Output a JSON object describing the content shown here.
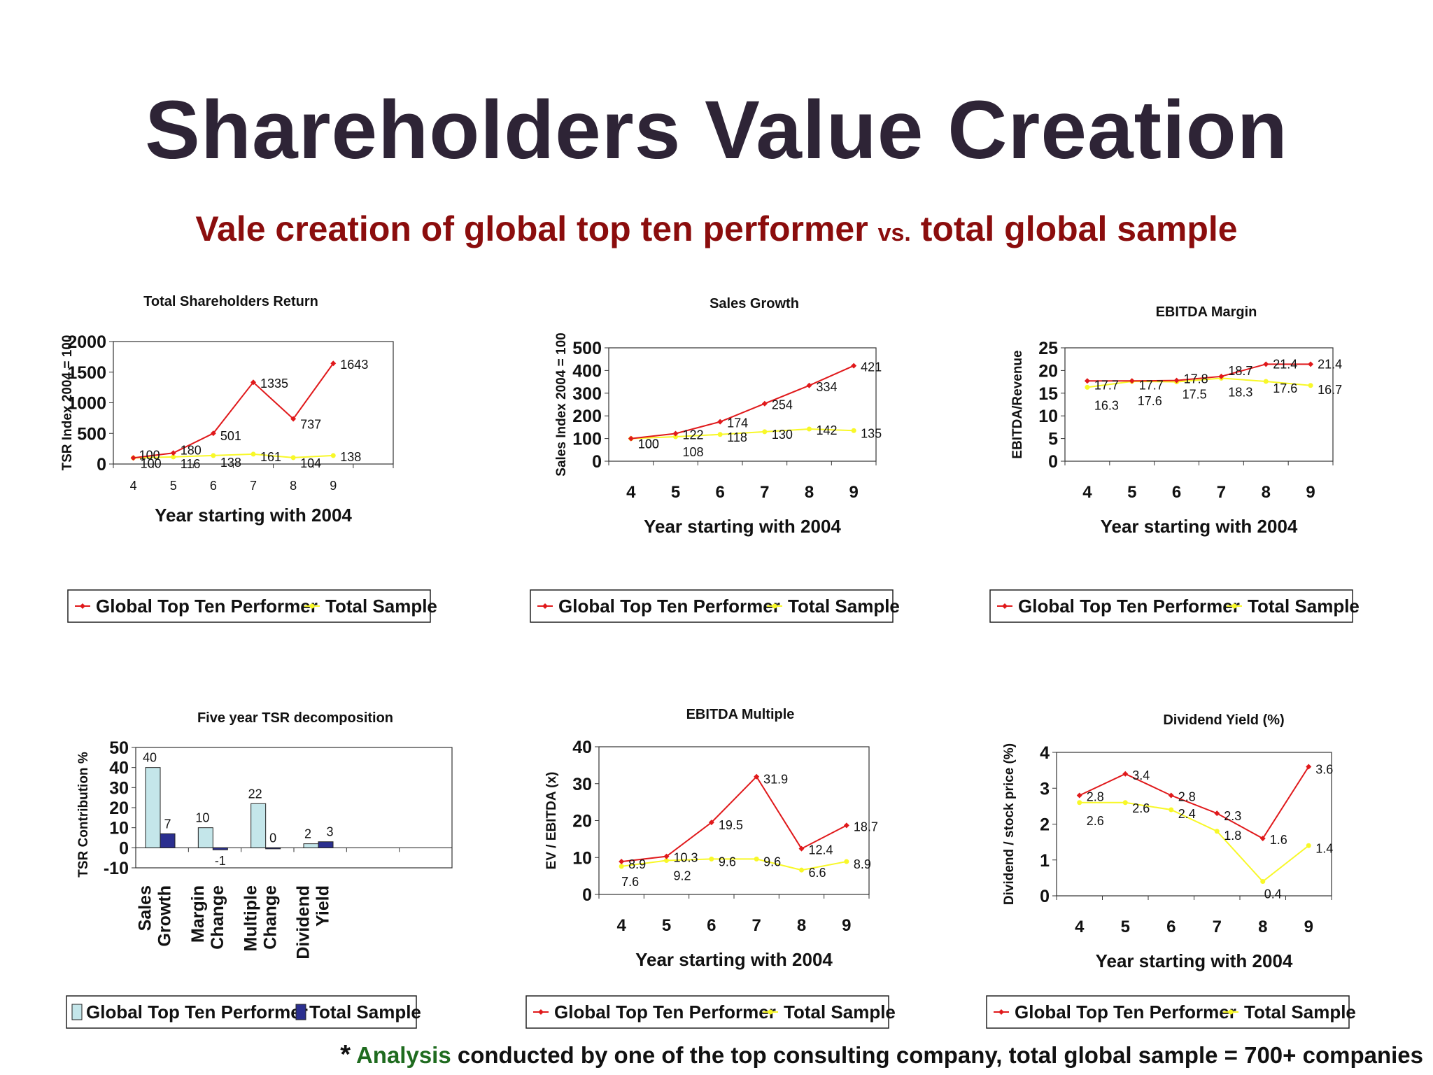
{
  "slide": {
    "title": "Shareholders Value Creation",
    "subtitle_part1": "Vale creation of global top ten performer ",
    "subtitle_vs": "vs.",
    "subtitle_part2": " total global sample",
    "footnote_star": "*",
    "footnote_green": "Analysis",
    "footnote_rest": " conducted by one of the top consulting company, total global sample = 700+ companies"
  },
  "colors": {
    "top_ten_line": "#e0191b",
    "total_sample_line": "#f8f828",
    "bar_top_ten": "#c4e6ea",
    "bar_total_sample": "#2b2f8f",
    "title": "#2e2436",
    "subtitle": "#8b0d0d",
    "footnote_highlight": "#1f6b1f"
  },
  "chart_data": [
    {
      "type": "line",
      "title": "Total Shareholders Return",
      "xlabel": "Year starting with 2004",
      "ylabel": "TSR Index    2004 = 100",
      "x": [
        4,
        5,
        6,
        7,
        8,
        9
      ],
      "ylim": [
        0,
        2000
      ],
      "yticks": [
        0,
        500,
        1000,
        1500,
        2000
      ],
      "series": [
        {
          "name": "Global Top Ten Performer",
          "values": [
            100,
            180,
            501,
            1335,
            737,
            1643
          ]
        },
        {
          "name": "Total Sample",
          "values": [
            100,
            116,
            138,
            161,
            104,
            138
          ]
        }
      ],
      "legend": "bottom"
    },
    {
      "type": "line",
      "title": "Sales Growth",
      "xlabel": "Year starting with 2004",
      "ylabel": "Sales Index    2004 = 100",
      "x": [
        4,
        5,
        6,
        7,
        8,
        9
      ],
      "ylim": [
        0,
        500
      ],
      "yticks": [
        0,
        100,
        200,
        300,
        400,
        500
      ],
      "series": [
        {
          "name": "Global Top Ten Performer",
          "values": [
            100,
            122,
            174,
            254,
            334,
            421
          ]
        },
        {
          "name": "Total Sample",
          "values": [
            100,
            108,
            118,
            130,
            142,
            135
          ]
        }
      ],
      "legend": "bottom"
    },
    {
      "type": "line",
      "title": "EBITDA Margin",
      "xlabel": "Year starting with 2004",
      "ylabel": "EBITDA/Revenue",
      "x": [
        4,
        5,
        6,
        7,
        8,
        9
      ],
      "ylim": [
        0,
        25
      ],
      "yticks": [
        0,
        5,
        10,
        15,
        20,
        25
      ],
      "series": [
        {
          "name": "Global Top Ten Performer",
          "values": [
            17.7,
            17.7,
            17.8,
            18.7,
            21.4,
            21.4
          ]
        },
        {
          "name": "Total Sample",
          "values": [
            16.3,
            17.6,
            17.5,
            18.3,
            17.6,
            16.7
          ]
        }
      ],
      "legend": "bottom"
    },
    {
      "type": "bar",
      "title": "Five year TSR decomposition",
      "xlabel": "",
      "ylabel": "TSR Contribution %",
      "categories": [
        "Sales Growth",
        "Margin Change",
        "Multiple Change",
        "Dividend Yield"
      ],
      "ylim": [
        -10,
        50
      ],
      "yticks": [
        -10,
        0,
        10,
        20,
        30,
        40,
        50
      ],
      "series": [
        {
          "name": "Global Top Ten Performer",
          "values": [
            40,
            10,
            22,
            2
          ]
        },
        {
          "name": "Total Sample",
          "values": [
            7,
            -1,
            0,
            3
          ]
        }
      ],
      "legend": "bottom"
    },
    {
      "type": "line",
      "title": "EBITDA Multiple",
      "xlabel": "Year starting with 2004",
      "ylabel": "EV / EBITDA (x)",
      "x": [
        4,
        5,
        6,
        7,
        8,
        9
      ],
      "ylim": [
        0,
        40
      ],
      "yticks": [
        0,
        10,
        20,
        30,
        40
      ],
      "series": [
        {
          "name": "Global Top Ten Performer",
          "values": [
            8.9,
            10.3,
            19.5,
            31.9,
            12.4,
            18.7
          ]
        },
        {
          "name": "Total Sample",
          "values": [
            7.6,
            9.2,
            9.6,
            9.6,
            6.6,
            8.9
          ]
        }
      ],
      "legend": "bottom"
    },
    {
      "type": "line",
      "title": "Dividend Yield (%)",
      "xlabel": "Year starting with 2004",
      "ylabel": "Dividend / stock price (%)",
      "x": [
        4,
        5,
        6,
        7,
        8,
        9
      ],
      "ylim": [
        0,
        4
      ],
      "yticks": [
        0,
        1,
        2,
        3,
        4
      ],
      "series": [
        {
          "name": "Global Top Ten Performer",
          "values": [
            2.8,
            3.4,
            2.8,
            2.3,
            1.6,
            3.6
          ]
        },
        {
          "name": "Total Sample",
          "values": [
            2.6,
            2.6,
            2.4,
            1.8,
            0.4,
            1.4
          ]
        }
      ],
      "legend": "bottom"
    }
  ]
}
